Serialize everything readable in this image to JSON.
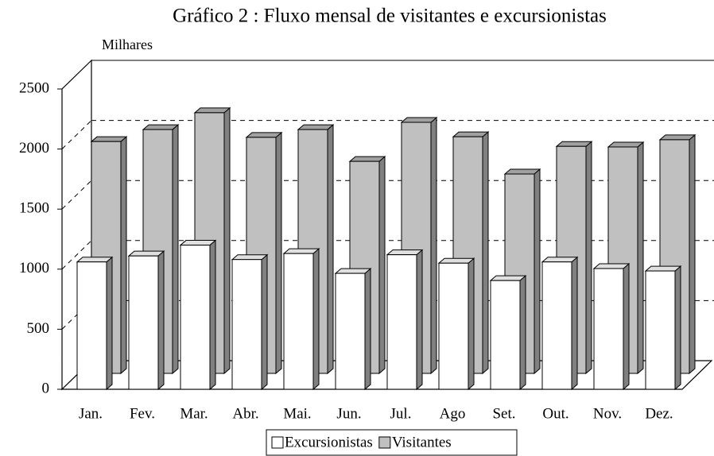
{
  "chart_data": {
    "type": "bar3d",
    "title": "Gráfico 2 : Fluxo mensal de visitantes e excursionistas",
    "y_label": "Milhares",
    "categories": [
      "Jan.",
      "Fev.",
      "Mar.",
      "Abr.",
      "Mai.",
      "Jun.",
      "Jul.",
      "Ago",
      "Set.",
      "Out.",
      "Nov.",
      "Dez."
    ],
    "series": [
      {
        "name": "Excursionistas",
        "color": "#ffffff",
        "values": [
          1060,
          1110,
          1200,
          1080,
          1130,
          965,
          1120,
          1050,
          905,
          1060,
          1005,
          985
        ]
      },
      {
        "name": "Visitantes",
        "color": "#c0c0c0",
        "values": [
          1930,
          2030,
          2170,
          1965,
          2030,
          1765,
          2090,
          1970,
          1660,
          1890,
          1885,
          1945
        ]
      }
    ],
    "ylim": [
      0,
      2500
    ],
    "yticks": [
      0,
      500,
      1000,
      1500,
      2000,
      2500
    ],
    "grid": true
  }
}
